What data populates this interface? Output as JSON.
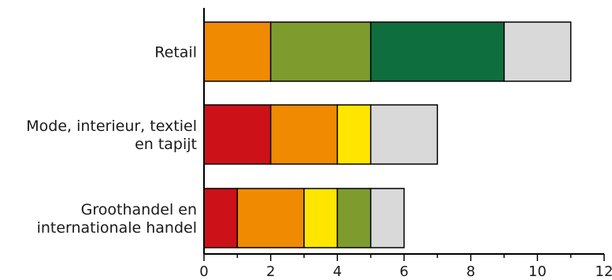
{
  "chart_data": {
    "type": "bar",
    "orientation": "horizontal",
    "stacked": true,
    "title": "",
    "xlabel": "",
    "ylabel": "",
    "xlim": [
      0,
      12
    ],
    "xticks": [
      "0",
      "2",
      "4",
      "6",
      "8",
      "10",
      "12"
    ],
    "grid": false,
    "legend": "none",
    "categories": [
      {
        "label_lines": [
          "Retail"
        ]
      },
      {
        "label_lines": [
          "Mode, interieur, textiel",
          "en tapijt"
        ]
      },
      {
        "label_lines": [
          "Groothandel en",
          "internationale handel"
        ]
      }
    ],
    "segment_colors": [
      "#cc1119",
      "#f08a00",
      "#ffe500",
      "#7e9c2e",
      "#0f6e3e",
      "#d9d9d9"
    ],
    "series": [
      {
        "color": "#cc1119",
        "values": [
          0,
          2,
          1
        ]
      },
      {
        "color": "#f08a00",
        "values": [
          2,
          2,
          2
        ]
      },
      {
        "color": "#ffe500",
        "values": [
          0,
          1,
          1
        ]
      },
      {
        "color": "#7e9c2e",
        "values": [
          3,
          0,
          1
        ]
      },
      {
        "color": "#0f6e3e",
        "values": [
          4,
          0,
          0
        ]
      },
      {
        "color": "#d9d9d9",
        "values": [
          2,
          2,
          1
        ]
      }
    ]
  }
}
